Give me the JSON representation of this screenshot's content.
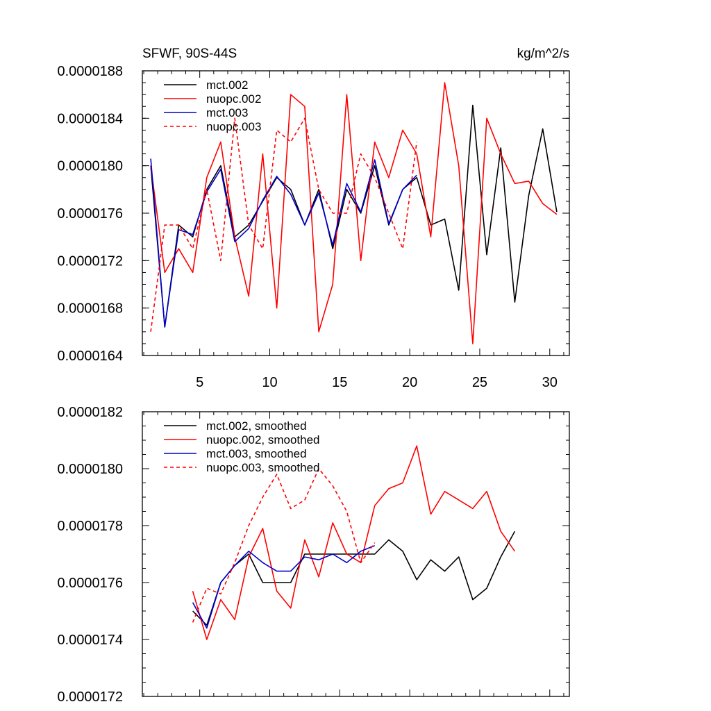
{
  "chart_data": [
    {
      "type": "line",
      "title": "SFWF, 90S-44S",
      "units": "kg/m^2/s",
      "xlim": [
        0.9,
        31.4
      ],
      "ylim": [
        1.64e-05,
        1.88e-05
      ],
      "xticks": [
        5,
        10,
        15,
        20,
        25,
        30
      ],
      "xtick_labels": [
        "5",
        "10",
        "15",
        "20",
        "25",
        "30"
      ],
      "yticks": [
        1.64e-05,
        1.68e-05,
        1.72e-05,
        1.76e-05,
        1.8e-05,
        1.84e-05,
        1.88e-05
      ],
      "ytick_labels": [
        "0.0000164",
        "0.0000168",
        "0.0000172",
        "0.0000176",
        "0.0000180",
        "0.0000184",
        "0.0000188"
      ],
      "legend_position": "top-left",
      "series": [
        {
          "name": "mct.002",
          "color": "#000000",
          "dash": "solid",
          "x": [
            1.5,
            2.5,
            3.5,
            4.5,
            5.5,
            6.5,
            7.5,
            8.5,
            9.5,
            10.5,
            11.5,
            12.5,
            13.5,
            14.5,
            15.5,
            16.5,
            17.5,
            18.5,
            19.5,
            20.5,
            21.5,
            22.5,
            23.5,
            24.5,
            25.5,
            26.5,
            27.5,
            28.5,
            29.5,
            30.5
          ],
          "values": [
            1.8e-05,
            1.664e-05,
            1.75e-05,
            1.74e-05,
            1.78e-05,
            1.8e-05,
            1.74e-05,
            1.75e-05,
            1.77e-05,
            1.79e-05,
            1.78e-05,
            1.75e-05,
            1.78e-05,
            1.73e-05,
            1.78e-05,
            1.76e-05,
            1.8e-05,
            1.75e-05,
            1.78e-05,
            1.79e-05,
            1.75e-05,
            1.755e-05,
            1.695e-05,
            1.851e-05,
            1.725e-05,
            1.815e-05,
            1.685e-05,
            1.775e-05,
            1.831e-05,
            1.761e-05
          ]
        },
        {
          "name": "nuopc.002",
          "color": "#ff0000",
          "dash": "solid",
          "x": [
            1.5,
            2.5,
            3.5,
            4.5,
            5.5,
            6.5,
            7.5,
            8.5,
            9.5,
            10.5,
            11.5,
            12.5,
            13.5,
            14.5,
            15.5,
            16.5,
            17.5,
            18.5,
            19.5,
            20.5,
            21.5,
            22.5,
            23.5,
            24.5,
            25.5,
            26.5,
            27.5,
            28.5,
            29.5,
            30.5
          ],
          "values": [
            1.8e-05,
            1.71e-05,
            1.73e-05,
            1.71e-05,
            1.79e-05,
            1.82e-05,
            1.74e-05,
            1.69e-05,
            1.81e-05,
            1.68e-05,
            1.86e-05,
            1.85e-05,
            1.66e-05,
            1.7e-05,
            1.86e-05,
            1.72e-05,
            1.82e-05,
            1.79e-05,
            1.83e-05,
            1.81e-05,
            1.74e-05,
            1.87e-05,
            1.8e-05,
            1.65e-05,
            1.84e-05,
            1.81e-05,
            1.785e-05,
            1.787e-05,
            1.768e-05,
            1.759e-05
          ]
        },
        {
          "name": "mct.003",
          "color": "#0000cc",
          "dash": "solid",
          "x": [
            1.5,
            2.5,
            3.5,
            4.5,
            5.5,
            6.5,
            7.5,
            8.5,
            9.5,
            10.5,
            11.5,
            12.5,
            13.5,
            14.5,
            15.5,
            16.5,
            17.5,
            18.5,
            19.5,
            20.5
          ],
          "values": [
            1.806e-05,
            1.664e-05,
            1.746e-05,
            1.742e-05,
            1.778e-05,
            1.797e-05,
            1.736e-05,
            1.747e-05,
            1.771e-05,
            1.791e-05,
            1.776e-05,
            1.75e-05,
            1.777e-05,
            1.733e-05,
            1.785e-05,
            1.761e-05,
            1.805e-05,
            1.751e-05,
            1.78e-05,
            1.792e-05
          ]
        },
        {
          "name": "nuopc.003",
          "color": "#ff0000",
          "dash": "dashed",
          "x": [
            1.5,
            2.5,
            3.5,
            4.5,
            5.5,
            6.5,
            7.5,
            8.5,
            9.5,
            10.5,
            11.5,
            12.5,
            13.5,
            14.5,
            15.5,
            16.5,
            17.5,
            18.5,
            19.5,
            20.5
          ],
          "values": [
            1.66e-05,
            1.75e-05,
            1.75e-05,
            1.73e-05,
            1.78e-05,
            1.72e-05,
            1.84e-05,
            1.75e-05,
            1.73e-05,
            1.83e-05,
            1.82e-05,
            1.84e-05,
            1.78e-05,
            1.76e-05,
            1.76e-05,
            1.81e-05,
            1.79e-05,
            1.76e-05,
            1.73e-05,
            1.82e-05
          ]
        }
      ],
      "legend": [
        "mct.002",
        "nuopc.002",
        "mct.003",
        "nuopc.003"
      ]
    },
    {
      "type": "line",
      "title": "",
      "xlim": [
        0.9,
        31.4
      ],
      "ylim": [
        1.72e-05,
        1.82e-05
      ],
      "xticks": [
        5,
        10,
        15,
        20,
        25,
        30
      ],
      "yticks": [
        1.72e-05,
        1.74e-05,
        1.76e-05,
        1.78e-05,
        1.8e-05,
        1.82e-05
      ],
      "ytick_labels": [
        "0.0000172",
        "0.0000174",
        "0.0000176",
        "0.0000178",
        "0.0000180",
        "0.0000182"
      ],
      "legend_position": "top-left",
      "series": [
        {
          "name": "mct.002, smoothed",
          "color": "#000000",
          "dash": "solid",
          "x": [
            4.5,
            5.5,
            6.5,
            7.5,
            8.5,
            9.5,
            10.5,
            11.5,
            12.5,
            13.5,
            14.5,
            15.5,
            16.5,
            17.5,
            18.5,
            19.5,
            20.5,
            21.5,
            22.5,
            23.5,
            24.5,
            25.5,
            26.5,
            27.5
          ],
          "values": [
            1.75e-05,
            1.745e-05,
            1.76e-05,
            1.766e-05,
            1.77e-05,
            1.76e-05,
            1.76e-05,
            1.76e-05,
            1.77e-05,
            1.77e-05,
            1.77e-05,
            1.77e-05,
            1.77e-05,
            1.77e-05,
            1.775e-05,
            1.771e-05,
            1.761e-05,
            1.768e-05,
            1.764e-05,
            1.769e-05,
            1.754e-05,
            1.758e-05,
            1.769e-05,
            1.778e-05
          ]
        },
        {
          "name": "nuopc.002, smoothed",
          "color": "#ff0000",
          "dash": "solid",
          "x": [
            4.5,
            5.5,
            6.5,
            7.5,
            8.5,
            9.5,
            10.5,
            11.5,
            12.5,
            13.5,
            14.5,
            15.5,
            16.5,
            17.5,
            18.5,
            19.5,
            20.5,
            21.5,
            22.5,
            23.5,
            24.5,
            25.5,
            26.5,
            27.5
          ],
          "values": [
            1.757e-05,
            1.74e-05,
            1.754e-05,
            1.747e-05,
            1.769e-05,
            1.779e-05,
            1.757e-05,
            1.751e-05,
            1.775e-05,
            1.762e-05,
            1.781e-05,
            1.77e-05,
            1.767e-05,
            1.787e-05,
            1.793e-05,
            1.795e-05,
            1.808e-05,
            1.784e-05,
            1.792e-05,
            1.789e-05,
            1.786e-05,
            1.792e-05,
            1.778e-05,
            1.771e-05
          ]
        },
        {
          "name": "mct.003, smoothed",
          "color": "#0000cc",
          "dash": "solid",
          "x": [
            4.5,
            5.5,
            6.5,
            7.5,
            8.5,
            9.5,
            10.5,
            11.5,
            12.5,
            13.5,
            14.5,
            15.5,
            16.5,
            17.5
          ],
          "values": [
            1.753e-05,
            1.744e-05,
            1.76e-05,
            1.766e-05,
            1.771e-05,
            1.767e-05,
            1.764e-05,
            1.764e-05,
            1.769e-05,
            1.768e-05,
            1.77e-05,
            1.767e-05,
            1.771e-05,
            1.773e-05
          ]
        },
        {
          "name": "nuopc.003, smoothed",
          "color": "#ff0000",
          "dash": "dashed",
          "x": [
            4.5,
            5.5,
            6.5,
            7.5,
            8.5,
            9.5,
            10.5,
            11.5,
            12.5,
            13.5,
            14.5,
            15.5,
            16.5,
            17.5
          ],
          "values": [
            1.746e-05,
            1.758e-05,
            1.756e-05,
            1.767e-05,
            1.78e-05,
            1.79e-05,
            1.798e-05,
            1.786e-05,
            1.789e-05,
            1.8e-05,
            1.794e-05,
            1.785e-05,
            1.767e-05,
            1.774e-05
          ]
        }
      ],
      "legend": [
        "mct.002, smoothed",
        "nuopc.002, smoothed",
        "mct.003, smoothed",
        "nuopc.003, smoothed"
      ]
    }
  ]
}
